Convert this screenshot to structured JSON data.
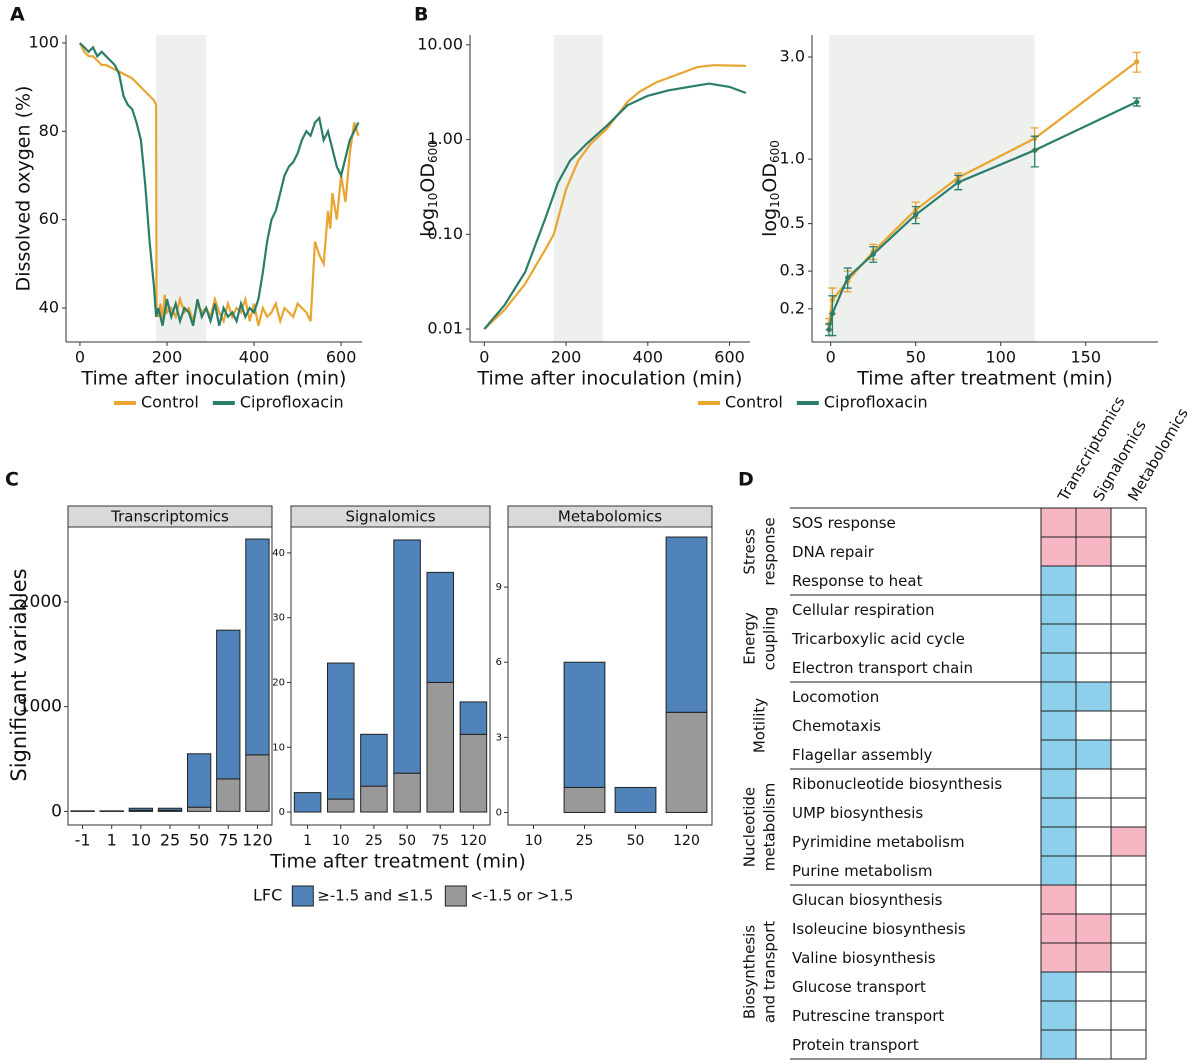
{
  "chart_data": [
    {
      "type": "line",
      "panel_label": "A",
      "x_label": "Time after inoculation (min)",
      "y_label": "Dissolved oxygen (%)",
      "xlim": [
        -32,
        648
      ],
      "ylim": [
        32.3,
        101.8
      ],
      "xticks": [
        0,
        200,
        400,
        600
      ],
      "yticks": [
        40,
        60,
        80,
        100
      ],
      "shade": [
        175,
        290
      ],
      "shade_color": "#eef0ee",
      "legend": "bottom",
      "series": [
        {
          "name": "Control",
          "color": "#e8a530",
          "x": [
            0,
            5,
            10,
            20,
            30,
            40,
            50,
            60,
            80,
            100,
            120,
            140,
            160,
            170,
            175,
            176,
            180,
            185,
            190,
            195,
            200,
            210,
            220,
            230,
            240,
            250,
            260,
            270,
            280,
            290,
            300,
            310,
            320,
            330,
            340,
            350,
            360,
            370,
            380,
            390,
            400,
            410,
            420,
            430,
            440,
            450,
            460,
            470,
            480,
            490,
            500,
            510,
            520,
            525,
            530,
            540,
            550,
            560,
            570,
            575,
            580,
            590,
            600,
            610,
            620,
            630,
            640
          ],
          "values": [
            100,
            99,
            98,
            97,
            97,
            96,
            95,
            95,
            94,
            93,
            92,
            90,
            88,
            87,
            86,
            40,
            38,
            41,
            37,
            43,
            39,
            40,
            38,
            42,
            39,
            40,
            37,
            41,
            39,
            40,
            38,
            42,
            39,
            37,
            41,
            38,
            40,
            39,
            42,
            37,
            41,
            36,
            40,
            38,
            39,
            41,
            37,
            40,
            39,
            38,
            41,
            40,
            39,
            38,
            37,
            55,
            52,
            50,
            62,
            58,
            66,
            60,
            70,
            64,
            75,
            82,
            79
          ]
        },
        {
          "name": "Ciprofloxacin",
          "color": "#2a7d6b",
          "x": [
            0,
            10,
            20,
            30,
            40,
            50,
            60,
            70,
            80,
            90,
            100,
            110,
            120,
            130,
            140,
            150,
            160,
            170,
            175,
            180,
            190,
            200,
            210,
            220,
            230,
            240,
            250,
            260,
            270,
            280,
            290,
            300,
            310,
            320,
            330,
            340,
            350,
            360,
            370,
            380,
            390,
            400,
            410,
            420,
            430,
            440,
            450,
            460,
            470,
            480,
            490,
            500,
            510,
            520,
            530,
            540,
            550,
            560,
            570,
            580,
            590,
            600,
            610,
            620,
            630,
            640
          ],
          "values": [
            100,
            99,
            98,
            99,
            97,
            98,
            97,
            96,
            95,
            93,
            88,
            86,
            85,
            82,
            78,
            68,
            55,
            45,
            38,
            40,
            36,
            42,
            38,
            41,
            37,
            40,
            39,
            36,
            42,
            38,
            40,
            37,
            41,
            36,
            40,
            38,
            39,
            37,
            41,
            38,
            40,
            39,
            42,
            48,
            55,
            60,
            62,
            66,
            70,
            72,
            73,
            75,
            78,
            80,
            79,
            82,
            83,
            78,
            80,
            76,
            72,
            70,
            74,
            78,
            80,
            82
          ]
        }
      ]
    },
    {
      "type": "line",
      "panel_label": "B",
      "x_label": "Time after inoculation (min)",
      "y_label": [
        "log",
        "10",
        "OD",
        "600"
      ],
      "log_y": true,
      "xlim": [
        -35,
        650
      ],
      "ylim": [
        0.0073,
        12.7
      ],
      "xticks": [
        0,
        200,
        400,
        600
      ],
      "yticks": [
        0.01,
        {
          "value": 0.1,
          "label": "0.10"
        },
        {
          "value": 1,
          "label": "1.00"
        },
        {
          "value": 10,
          "label": "10.00"
        }
      ],
      "shade": [
        170,
        290
      ],
      "shade_color": "#eef0ee",
      "legend": "bottom",
      "series": [
        {
          "name": "Control",
          "color": "#e8a530",
          "x": [
            0,
            50,
            100,
            150,
            170,
            200,
            230,
            260,
            300,
            350,
            380,
            420,
            480,
            520,
            560,
            640
          ],
          "values": [
            0.01,
            0.016,
            0.03,
            0.07,
            0.1,
            0.3,
            0.6,
            0.9,
            1.3,
            2.5,
            3.2,
            4,
            5,
            5.8,
            6.1,
            6.0
          ]
        },
        {
          "name": "Ciprofloxacin",
          "color": "#2a7d6b",
          "x": [
            0,
            50,
            100,
            150,
            180,
            210,
            250,
            300,
            350,
            400,
            450,
            500,
            550,
            600,
            640
          ],
          "values": [
            0.01,
            0.018,
            0.04,
            0.15,
            0.35,
            0.6,
            0.9,
            1.4,
            2.3,
            2.9,
            3.3,
            3.6,
            3.9,
            3.6,
            3.1
          ]
        }
      ]
    },
    {
      "type": "line",
      "x_label": "Time after treatment (min)",
      "y_label": [
        "log",
        "10",
        "OD",
        "600"
      ],
      "log_y": true,
      "markers": true,
      "xlim": [
        -11,
        192.5
      ],
      "ylim": [
        0.14,
        3.8
      ],
      "xticks": [
        0,
        50,
        100,
        150
      ],
      "yticks": [
        0.2,
        0.3,
        0.5,
        {
          "value": 1,
          "label": "1.0"
        },
        {
          "value": 3,
          "label": "3.0"
        }
      ],
      "shade": [
        -1,
        120
      ],
      "shade_color": "#eef0ee",
      "series": [
        {
          "color": "#e8a530",
          "x": [
            -1,
            1,
            10,
            25,
            50,
            75,
            120,
            180
          ],
          "values": [
            0.17,
            0.22,
            0.27,
            0.37,
            0.58,
            0.82,
            1.25,
            2.85
          ],
          "errors": [
            0.01,
            0.03,
            0.03,
            0.03,
            0.05,
            0.04,
            0.15,
            0.3
          ]
        },
        {
          "color": "#2a7d6b",
          "x": [
            -1,
            1,
            10,
            25,
            50,
            75,
            120,
            180
          ],
          "values": [
            0.16,
            0.19,
            0.28,
            0.36,
            0.55,
            0.78,
            1.1,
            1.85
          ],
          "errors": [
            0.01,
            0.04,
            0.03,
            0.03,
            0.05,
            0.06,
            0.18,
            0.08
          ]
        }
      ]
    },
    {
      "type": "bar",
      "stacked": true,
      "panel_label": "C",
      "x_label": "Time after treatment (min)",
      "y_label": "Significant variables",
      "legend_title": "LFC",
      "series": [
        {
          "name": "≥-1.5 and ≤1.5",
          "color": "#4f83b9"
        },
        {
          "name": "<-1.5 or >1.5",
          "color": "#999999"
        }
      ],
      "facets": [
        {
          "title": "Transcriptomics",
          "categories": [
            "-1",
            "1",
            "10",
            "25",
            "50",
            "75",
            "120"
          ],
          "ylim": [
            -130,
            2715
          ],
          "yticks": [
            0,
            1000,
            2000
          ],
          "values": [
            [
              3,
              3,
              20,
              20,
              510,
              1420,
              2060
            ],
            [
              2,
              2,
              10,
              10,
              40,
              310,
              540
            ]
          ]
        },
        {
          "title": "Signalomics",
          "categories": [
            "1",
            "10",
            "25",
            "50",
            "75",
            "120"
          ],
          "ylim": [
            -2,
            44
          ],
          "yticks": [
            0,
            10,
            20,
            30,
            40
          ],
          "values": [
            [
              3,
              21,
              8,
              36,
              17,
              5
            ],
            [
              0,
              2,
              4,
              6,
              20,
              12
            ]
          ]
        },
        {
          "title": "Metabolomics",
          "categories": [
            "10",
            "25",
            "50",
            "120"
          ],
          "ylim": [
            -0.5,
            11.4
          ],
          "yticks": [
            0,
            3,
            6,
            9
          ],
          "values": [
            [
              0,
              5,
              1,
              7
            ],
            [
              0,
              1,
              0,
              4
            ]
          ]
        }
      ]
    },
    {
      "type": "heatmap",
      "panel_label": "D",
      "columns": [
        "Transcriptomics",
        "Signalomics",
        "Metabolomics"
      ],
      "groups": [
        {
          "label": [
            "Stress",
            "response"
          ],
          "rows": [
            {
              "label": "SOS response",
              "cells": [
                "#f6b6c3",
                "#f6b6c3",
                null
              ]
            },
            {
              "label": "DNA repair",
              "cells": [
                "#f6b6c3",
                "#f6b6c3",
                null
              ]
            },
            {
              "label": "Response to heat",
              "cells": [
                "#8ecfec",
                null,
                null
              ]
            }
          ]
        },
        {
          "label": [
            "Energy",
            "coupling"
          ],
          "rows": [
            {
              "label": "Cellular respiration",
              "cells": [
                "#8ecfec",
                null,
                null
              ]
            },
            {
              "label": "Tricarboxylic acid cycle",
              "cells": [
                "#8ecfec",
                null,
                null
              ]
            },
            {
              "label": "Electron transport chain",
              "cells": [
                "#8ecfec",
                null,
                null
              ]
            }
          ]
        },
        {
          "label": [
            "Motility"
          ],
          "rows": [
            {
              "label": "Locomotion",
              "cells": [
                "#8ecfec",
                "#8ecfec",
                null
              ]
            },
            {
              "label": "Chemotaxis",
              "cells": [
                "#8ecfec",
                null,
                null
              ]
            },
            {
              "label": "Flagellar assembly",
              "cells": [
                "#8ecfec",
                "#8ecfec",
                null
              ]
            }
          ]
        },
        {
          "label": [
            "Nucleotide",
            "metabolism"
          ],
          "rows": [
            {
              "label": "Ribonucleotide biosynthesis",
              "cells": [
                "#8ecfec",
                null,
                null
              ]
            },
            {
              "label": "UMP biosynthesis",
              "cells": [
                "#8ecfec",
                null,
                null
              ]
            },
            {
              "label": "Pyrimidine metabolism",
              "cells": [
                "#8ecfec",
                null,
                "#f6b6c3"
              ]
            },
            {
              "label": "Purine metabolism",
              "cells": [
                "#8ecfec",
                null,
                null
              ]
            }
          ]
        },
        {
          "label": [
            "Biosynthesis",
            "and transport"
          ],
          "rows": [
            {
              "label": "Glucan biosynthesis",
              "cells": [
                "#f6b6c3",
                null,
                null
              ]
            },
            {
              "label": "Isoleucine biosynthesis",
              "cells": [
                "#f6b6c3",
                "#f6b6c3",
                null
              ]
            },
            {
              "label": "Valine biosynthesis",
              "cells": [
                "#f6b6c3",
                "#f6b6c3",
                null
              ]
            },
            {
              "label": "Glucose transport",
              "cells": [
                "#8ecfec",
                null,
                null
              ]
            },
            {
              "label": "Putrescine transport",
              "cells": [
                "#8ecfec",
                null,
                null
              ]
            },
            {
              "label": "Protein transport",
              "cells": [
                "#8ecfec",
                null,
                null
              ]
            }
          ]
        }
      ]
    }
  ]
}
